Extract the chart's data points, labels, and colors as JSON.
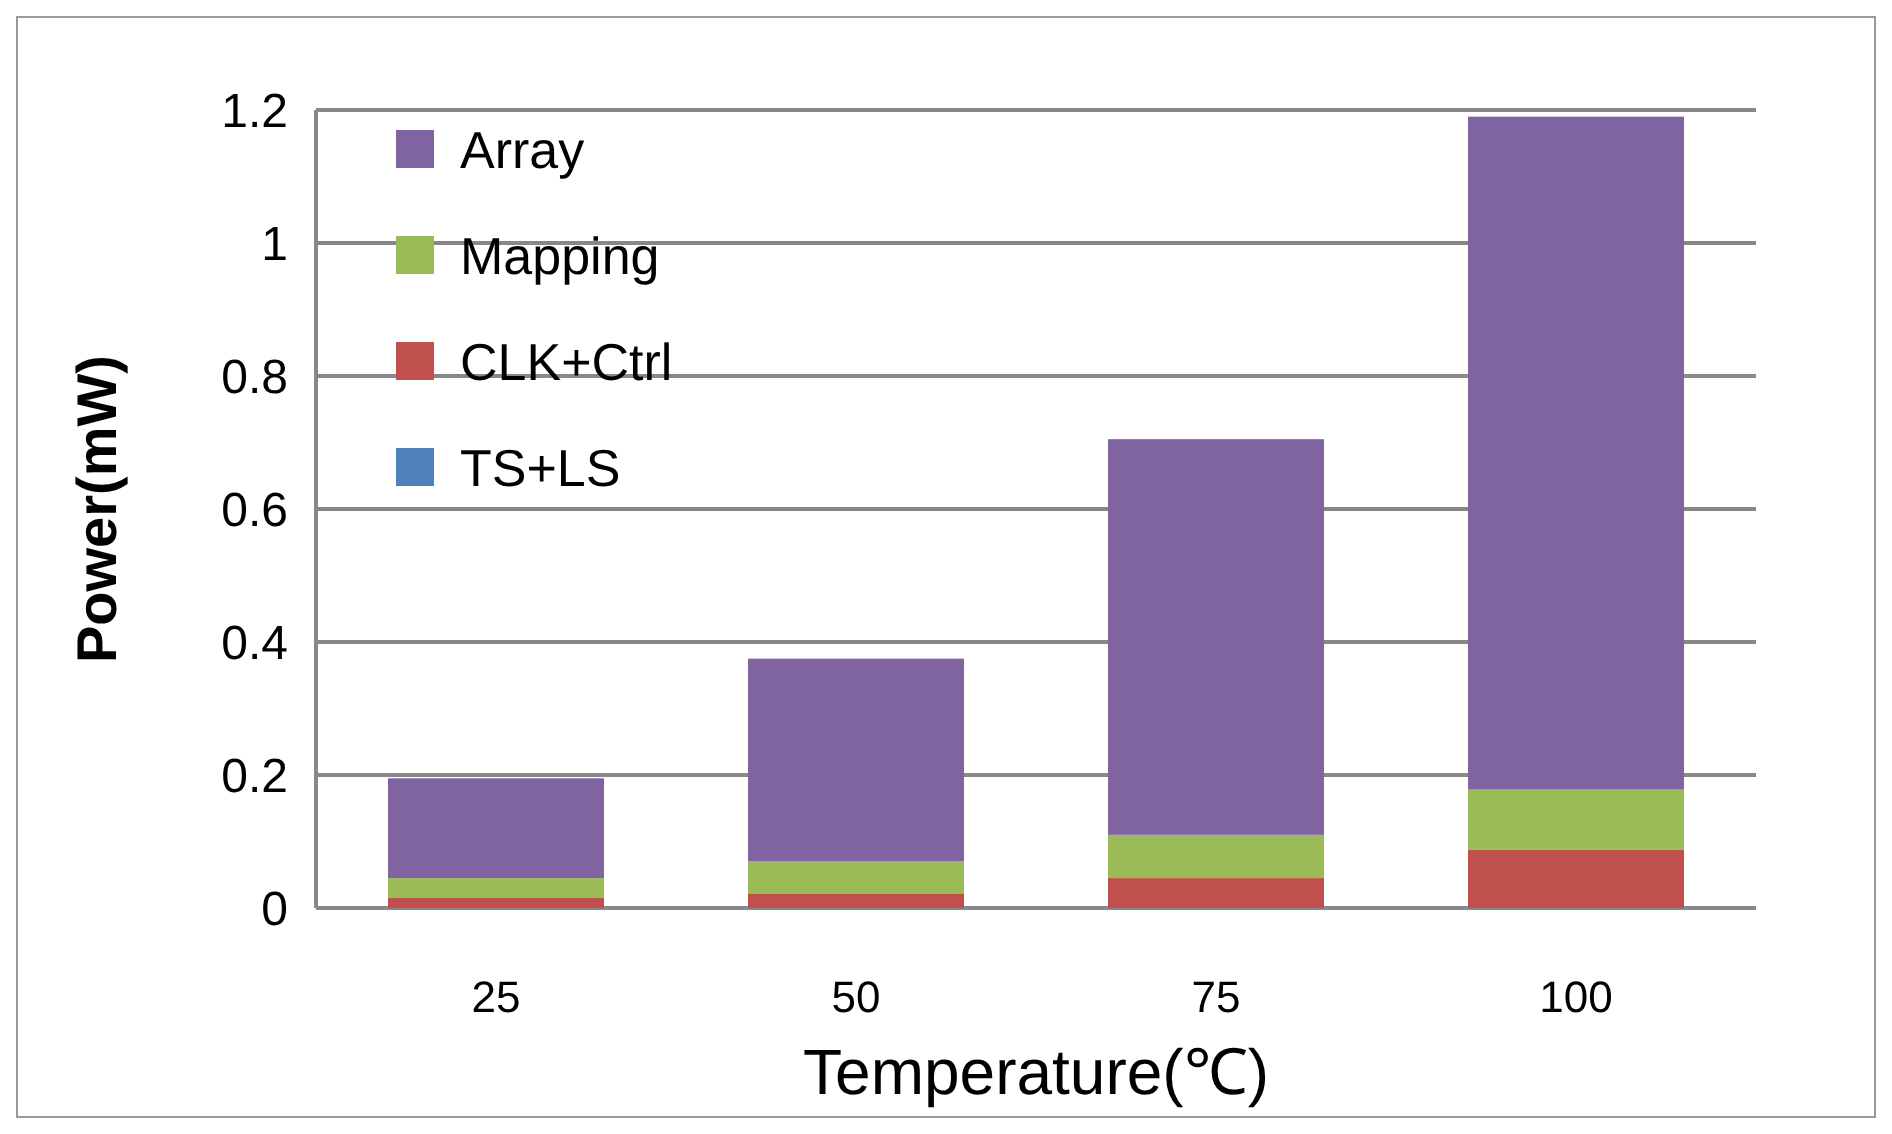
{
  "chart_data": {
    "type": "bar",
    "stacked": true,
    "xlabel": "Temperature(℃)",
    "ylabel": "Power(mW)",
    "categories": [
      "25",
      "50",
      "75",
      "100"
    ],
    "series": [
      {
        "name": "TS+LS",
        "color": "#4f81bd",
        "values": [
          0,
          0,
          0,
          0
        ]
      },
      {
        "name": "CLK+Ctrl",
        "color": "#c0504d",
        "values": [
          0.015,
          0.022,
          0.045,
          0.088
        ]
      },
      {
        "name": "Mapping",
        "color": "#9bbb59",
        "values": [
          0.03,
          0.048,
          0.065,
          0.09
        ]
      },
      {
        "name": "Array",
        "color": "#8064a2",
        "values": [
          0.15,
          0.305,
          0.595,
          1.012
        ]
      }
    ],
    "ylim": [
      0,
      1.2
    ],
    "yticks": [
      0,
      0.2,
      0.4,
      0.6,
      0.8,
      1,
      1.2
    ],
    "grid": "y",
    "legend": "top left"
  }
}
